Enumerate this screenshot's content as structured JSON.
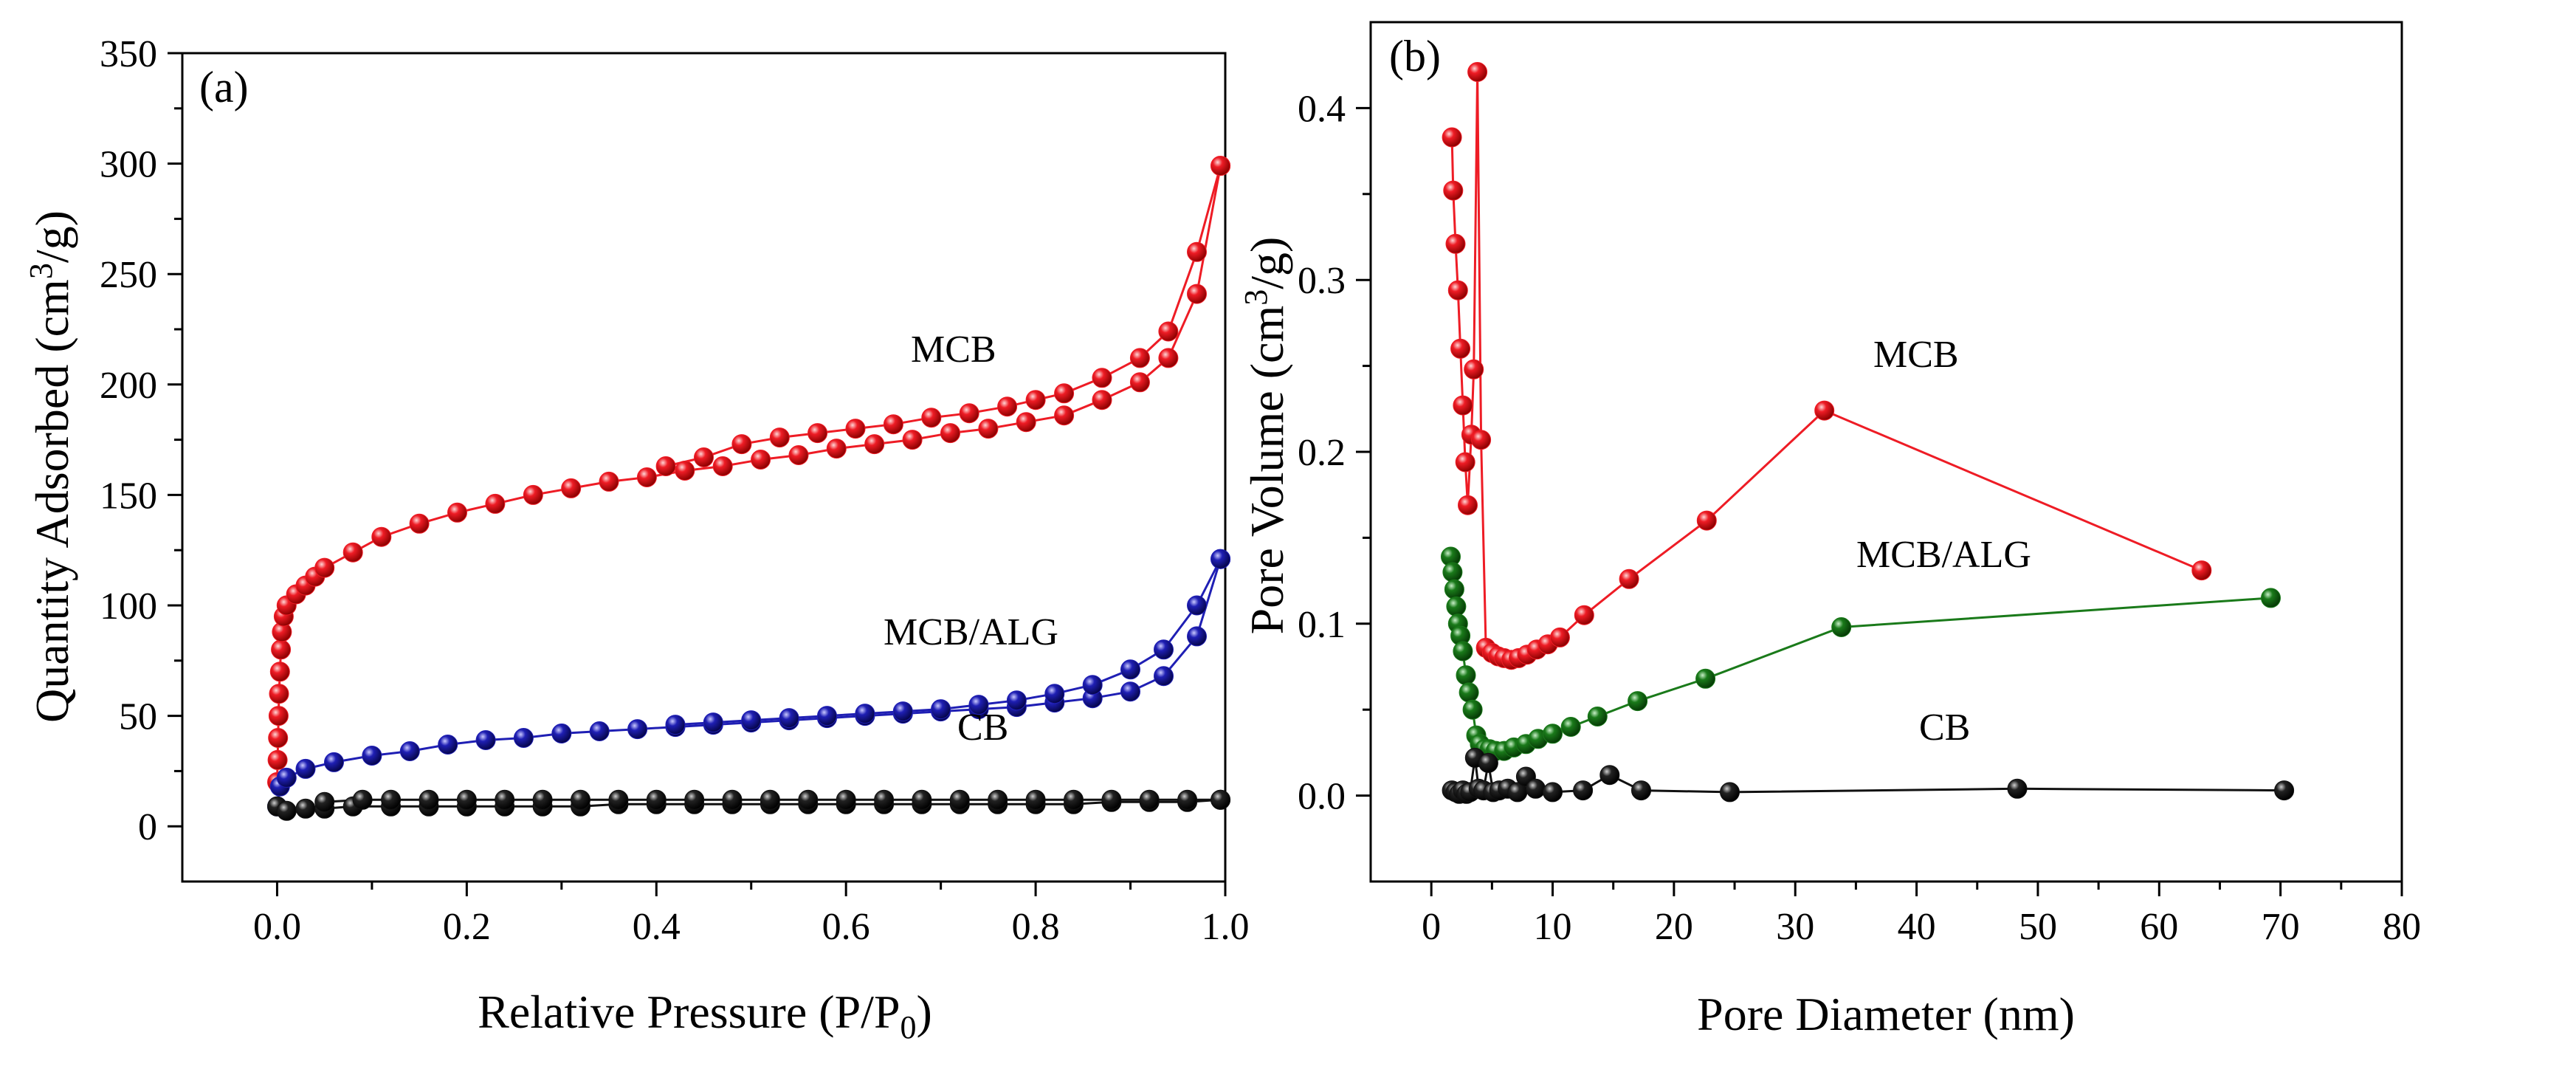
{
  "colors": {
    "MCB": "#ee1c25",
    "MCB/ALG": "#1f1fb4",
    "CB": "#111111",
    "MCB_b": "#ee1c25",
    "MCB/ALG_b": "#1a7a1a",
    "CB_b": "#111111"
  },
  "chart_data": [
    {
      "type": "line",
      "panel_label": "(a)",
      "xlabel": "Relative Pressure (P/P",
      "xlabel_sub": "0",
      "xlabel_end": ")",
      "ylabel": "Quantity Adsorbed (cm",
      "ylabel_sup": "3",
      "ylabel_end": "/g)",
      "xlim": [
        -0.1,
        1.0
      ],
      "ylim": [
        -25,
        350
      ],
      "xticks": [
        0.0,
        0.2,
        0.4,
        0.6,
        0.8,
        1.0
      ],
      "xtick_labels": [
        "0.0",
        "0.2",
        "0.4",
        "0.6",
        "0.8",
        "1.0"
      ],
      "yticks": [
        0,
        50,
        100,
        150,
        200,
        250,
        300,
        350
      ],
      "ytick_labels": [
        "0",
        "50",
        "100",
        "150",
        "200",
        "250",
        "300",
        "350"
      ],
      "series": [
        {
          "name": "MCB",
          "label": "MCB",
          "color_key": "MCB",
          "adsorption": [
            [
              0.0,
              20
            ],
            [
              0.0005,
              30
            ],
            [
              0.001,
              40
            ],
            [
              0.0015,
              50
            ],
            [
              0.002,
              60
            ],
            [
              0.003,
              70
            ],
            [
              0.004,
              80
            ],
            [
              0.005,
              88
            ],
            [
              0.007,
              95
            ],
            [
              0.01,
              100
            ],
            [
              0.02,
              105
            ],
            [
              0.03,
              109
            ],
            [
              0.04,
              113
            ],
            [
              0.05,
              117
            ],
            [
              0.08,
              124
            ],
            [
              0.11,
              131
            ],
            [
              0.15,
              137
            ],
            [
              0.19,
              142
            ],
            [
              0.23,
              146
            ],
            [
              0.27,
              150
            ],
            [
              0.31,
              153
            ],
            [
              0.35,
              156
            ],
            [
              0.39,
              158
            ],
            [
              0.43,
              161
            ],
            [
              0.47,
              163
            ],
            [
              0.51,
              166
            ],
            [
              0.55,
              168
            ],
            [
              0.59,
              171
            ],
            [
              0.63,
              173
            ],
            [
              0.67,
              175
            ],
            [
              0.71,
              178
            ],
            [
              0.75,
              180
            ],
            [
              0.79,
              183
            ],
            [
              0.83,
              186
            ],
            [
              0.87,
              193
            ],
            [
              0.91,
              201
            ],
            [
              0.94,
              212
            ],
            [
              0.97,
              241
            ],
            [
              0.995,
              299
            ]
          ],
          "desorption": [
            [
              0.995,
              299
            ],
            [
              0.97,
              260
            ],
            [
              0.94,
              224
            ],
            [
              0.91,
              212
            ],
            [
              0.87,
              203
            ],
            [
              0.83,
              196
            ],
            [
              0.8,
              193
            ],
            [
              0.77,
              190
            ],
            [
              0.73,
              187
            ],
            [
              0.69,
              185
            ],
            [
              0.65,
              182
            ],
            [
              0.61,
              180
            ],
            [
              0.57,
              178
            ],
            [
              0.53,
              176
            ],
            [
              0.49,
              173
            ],
            [
              0.45,
              167
            ],
            [
              0.41,
              163
            ]
          ]
        },
        {
          "name": "MCB/ALG",
          "label": "MCB/ALG",
          "color_key": "MCB/ALG",
          "adsorption": [
            [
              0.0,
              9
            ],
            [
              0.003,
              18
            ],
            [
              0.01,
              22
            ],
            [
              0.03,
              26
            ],
            [
              0.06,
              29
            ],
            [
              0.1,
              32
            ],
            [
              0.14,
              34
            ],
            [
              0.18,
              37
            ],
            [
              0.22,
              39
            ],
            [
              0.26,
              40
            ],
            [
              0.3,
              42
            ],
            [
              0.34,
              43
            ],
            [
              0.38,
              44
            ],
            [
              0.42,
              45
            ],
            [
              0.46,
              46
            ],
            [
              0.5,
              47
            ],
            [
              0.54,
              48
            ],
            [
              0.58,
              49
            ],
            [
              0.62,
              50
            ],
            [
              0.66,
              51
            ],
            [
              0.7,
              52
            ],
            [
              0.74,
              53
            ],
            [
              0.78,
              54
            ],
            [
              0.82,
              56
            ],
            [
              0.86,
              58
            ],
            [
              0.9,
              61
            ],
            [
              0.935,
              68
            ],
            [
              0.97,
              86
            ],
            [
              0.995,
              121
            ]
          ],
          "desorption": [
            [
              0.995,
              121
            ],
            [
              0.97,
              100
            ],
            [
              0.935,
              80
            ],
            [
              0.9,
              71
            ],
            [
              0.86,
              64
            ],
            [
              0.82,
              60
            ],
            [
              0.78,
              57
            ],
            [
              0.74,
              55
            ],
            [
              0.7,
              53
            ],
            [
              0.66,
              52
            ],
            [
              0.62,
              51
            ],
            [
              0.58,
              50
            ],
            [
              0.54,
              49
            ],
            [
              0.5,
              48
            ],
            [
              0.46,
              47
            ],
            [
              0.42,
              46
            ]
          ]
        },
        {
          "name": "CB",
          "label": "CB",
          "color_key": "CB",
          "adsorption": [
            [
              0.0,
              9
            ],
            [
              0.01,
              7
            ],
            [
              0.03,
              8
            ],
            [
              0.05,
              8
            ],
            [
              0.08,
              9
            ],
            [
              0.12,
              9
            ],
            [
              0.16,
              9
            ],
            [
              0.2,
              9
            ],
            [
              0.24,
              9
            ],
            [
              0.28,
              9
            ],
            [
              0.32,
              9
            ],
            [
              0.36,
              10
            ],
            [
              0.4,
              10
            ],
            [
              0.44,
              10
            ],
            [
              0.48,
              10
            ],
            [
              0.52,
              10
            ],
            [
              0.56,
              10
            ],
            [
              0.6,
              10
            ],
            [
              0.64,
              10
            ],
            [
              0.68,
              10
            ],
            [
              0.72,
              10
            ],
            [
              0.76,
              10
            ],
            [
              0.8,
              10
            ],
            [
              0.84,
              10
            ],
            [
              0.88,
              11
            ],
            [
              0.92,
              11
            ],
            [
              0.96,
              11
            ],
            [
              0.995,
              12
            ]
          ],
          "desorption": [
            [
              0.995,
              12
            ],
            [
              0.96,
              12
            ],
            [
              0.92,
              12
            ],
            [
              0.88,
              12
            ],
            [
              0.84,
              12
            ],
            [
              0.8,
              12
            ],
            [
              0.76,
              12
            ],
            [
              0.72,
              12
            ],
            [
              0.68,
              12
            ],
            [
              0.64,
              12
            ],
            [
              0.6,
              12
            ],
            [
              0.56,
              12
            ],
            [
              0.52,
              12
            ],
            [
              0.48,
              12
            ],
            [
              0.44,
              12
            ],
            [
              0.4,
              12
            ],
            [
              0.36,
              12
            ],
            [
              0.32,
              12
            ],
            [
              0.28,
              12
            ],
            [
              0.24,
              12
            ],
            [
              0.2,
              12
            ],
            [
              0.16,
              12
            ],
            [
              0.12,
              12
            ],
            [
              0.09,
              12
            ],
            [
              0.05,
              11
            ]
          ]
        }
      ]
    },
    {
      "type": "line",
      "panel_label": "(b)",
      "xlabel": "Pore Diameter (nm)",
      "ylabel": "Pore Volume (cm",
      "ylabel_sup": "3",
      "ylabel_end": "/g)",
      "xlim": [
        -5,
        80
      ],
      "ylim": [
        -0.05,
        0.45
      ],
      "xticks": [
        0,
        10,
        20,
        30,
        40,
        50,
        60,
        70,
        80
      ],
      "xtick_labels": [
        "0",
        "10",
        "20",
        "30",
        "40",
        "50",
        "60",
        "70",
        "80"
      ],
      "yticks": [
        0.0,
        0.1,
        0.2,
        0.3,
        0.4
      ],
      "ytick_labels": [
        "0.0",
        "0.1",
        "0.2",
        "0.3",
        "0.4"
      ],
      "series": [
        {
          "name": "MCB",
          "label": "MCB",
          "color_key": "MCB_b",
          "points": [
            [
              1.7,
              0.383
            ],
            [
              1.8,
              0.352
            ],
            [
              2.0,
              0.321
            ],
            [
              2.2,
              0.294
            ],
            [
              2.4,
              0.26
            ],
            [
              2.6,
              0.227
            ],
            [
              2.8,
              0.194
            ],
            [
              3.0,
              0.169
            ],
            [
              3.3,
              0.21
            ],
            [
              3.5,
              0.248
            ],
            [
              3.8,
              0.421
            ],
            [
              4.1,
              0.207
            ],
            [
              4.5,
              0.086
            ],
            [
              5.0,
              0.083
            ],
            [
              5.5,
              0.081
            ],
            [
              6.0,
              0.08
            ],
            [
              6.6,
              0.079
            ],
            [
              7.2,
              0.08
            ],
            [
              7.9,
              0.082
            ],
            [
              8.7,
              0.085
            ],
            [
              9.6,
              0.088
            ],
            [
              10.6,
              0.092
            ],
            [
              12.6,
              0.105
            ],
            [
              16.3,
              0.126
            ],
            [
              22.7,
              0.16
            ],
            [
              32.4,
              0.224
            ],
            [
              63.5,
              0.131
            ]
          ]
        },
        {
          "name": "MCB/ALG",
          "label": "MCB/ALG",
          "color_key": "MCB/ALG_b",
          "points": [
            [
              1.6,
              0.139
            ],
            [
              1.75,
              0.13
            ],
            [
              1.9,
              0.12
            ],
            [
              2.05,
              0.11
            ],
            [
              2.2,
              0.1
            ],
            [
              2.4,
              0.093
            ],
            [
              2.6,
              0.084
            ],
            [
              2.85,
              0.07
            ],
            [
              3.1,
              0.06
            ],
            [
              3.4,
              0.05
            ],
            [
              3.7,
              0.035
            ],
            [
              4.0,
              0.03
            ],
            [
              4.4,
              0.027
            ],
            [
              4.8,
              0.027
            ],
            [
              5.3,
              0.026
            ],
            [
              6.0,
              0.026
            ],
            [
              6.8,
              0.028
            ],
            [
              7.8,
              0.03
            ],
            [
              8.8,
              0.033
            ],
            [
              10.0,
              0.036
            ],
            [
              11.5,
              0.04
            ],
            [
              13.7,
              0.046
            ],
            [
              17.0,
              0.055
            ],
            [
              22.6,
              0.068
            ],
            [
              33.8,
              0.098
            ],
            [
              69.2,
              0.115
            ]
          ]
        },
        {
          "name": "CB",
          "label": "CB",
          "color_key": "CB_b",
          "points": [
            [
              1.7,
              0.003
            ],
            [
              2.0,
              0.002
            ],
            [
              2.3,
              0.001
            ],
            [
              2.6,
              0.003
            ],
            [
              2.9,
              0.001
            ],
            [
              3.2,
              0.002
            ],
            [
              3.6,
              0.022
            ],
            [
              3.9,
              0.004
            ],
            [
              4.3,
              0.003
            ],
            [
              4.7,
              0.019
            ],
            [
              5.1,
              0.002
            ],
            [
              5.6,
              0.003
            ],
            [
              6.3,
              0.004
            ],
            [
              7.1,
              0.002
            ],
            [
              7.8,
              0.011
            ],
            [
              8.6,
              0.004
            ],
            [
              10.0,
              0.002
            ],
            [
              12.5,
              0.003
            ],
            [
              14.7,
              0.012
            ],
            [
              17.3,
              0.003
            ],
            [
              24.6,
              0.002
            ],
            [
              48.3,
              0.004
            ],
            [
              70.3,
              0.003
            ]
          ]
        }
      ]
    }
  ]
}
